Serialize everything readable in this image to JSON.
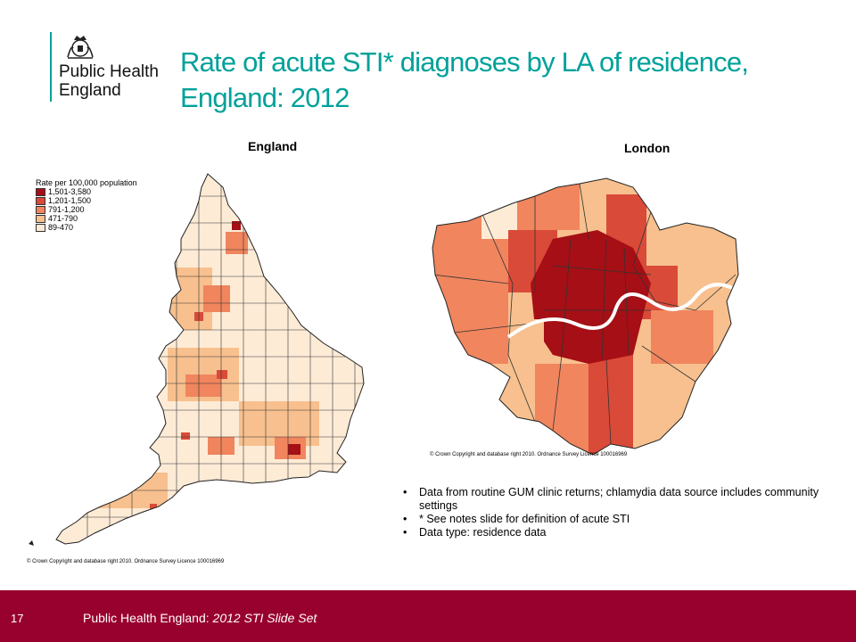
{
  "logo": {
    "line1": "Public Health",
    "line2": "England",
    "crest_icon": "royal-crest-icon"
  },
  "title": "Rate of acute STI* diagnoses by LA of residence, England: 2012",
  "maps": {
    "england_title": "England",
    "london_title": "London"
  },
  "legend": {
    "heading": "Rate per 100,000 population",
    "items": [
      {
        "label": "1,501-3,580",
        "color": "#a50f15"
      },
      {
        "label": "1,201-1,500",
        "color": "#d94a38"
      },
      {
        "label": "791-1,200",
        "color": "#f0855e"
      },
      {
        "label": "471-790",
        "color": "#f7c08e"
      },
      {
        "label": "89-470",
        "color": "#fdebd6"
      }
    ]
  },
  "copyright_england": "© Crown Copyright and database right 2010. Ordnance Survey Licence 100016969",
  "copyright_london": "© Crown Copyright and database right 2010. Ordnance Survey Licence 100016969",
  "bullets": [
    "Data from routine GUM clinic returns; chlamydia data source includes community settings",
    "* See notes slide for definition of acute STI",
    "Data type: residence data"
  ],
  "footer": {
    "slide_number": "17",
    "org": "Public Health England:",
    "deck": "2012 STI Slide Set"
  }
}
